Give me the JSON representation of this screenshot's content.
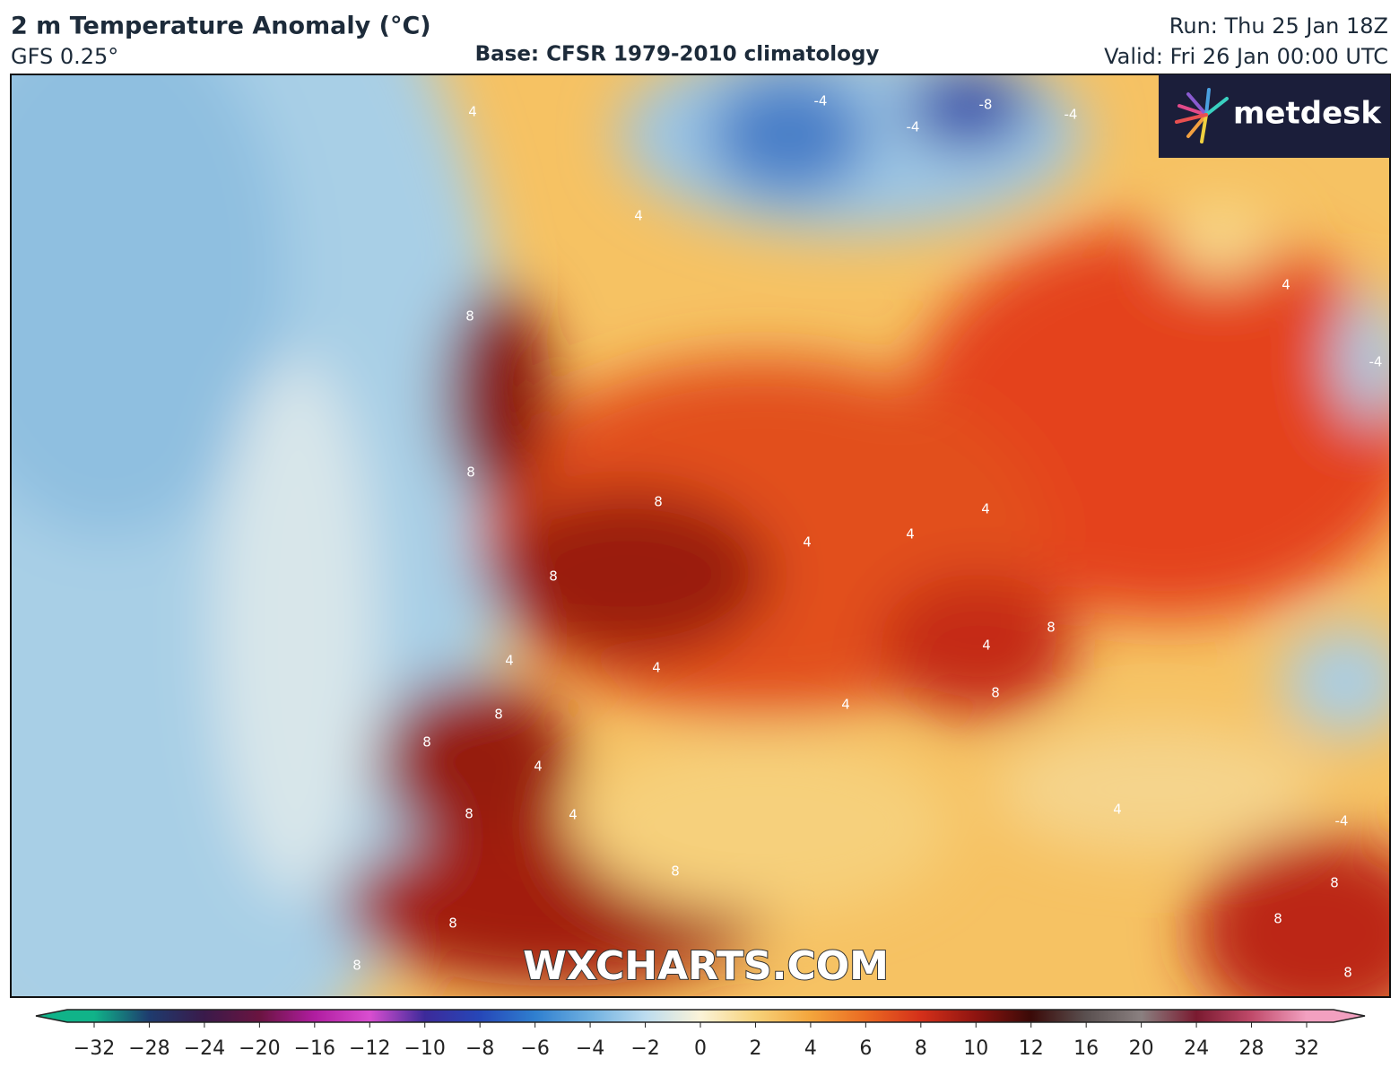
{
  "header": {
    "title": "2 m Temperature Anomaly (°C)",
    "model": "GFS 0.25°",
    "base": "Base: CFSR 1979-2010 climatology",
    "run": "Run: Thu 25 Jan 18Z",
    "valid": "Valid: Fri 26 Jan 00:00 UTC"
  },
  "map": {
    "logo": "metdesk",
    "watermark": "WXCHARTS.COM",
    "contour_labels": [
      8,
      8,
      8,
      8,
      4,
      4,
      8,
      8,
      4,
      8,
      4,
      8,
      8,
      8,
      8,
      4,
      8,
      4,
      4,
      4,
      4,
      4,
      -4,
      -8,
      -4,
      -4,
      4,
      4,
      4,
      8,
      8,
      8,
      -4,
      -4
    ]
  },
  "colorbar": {
    "ticks": [
      {
        "value": -32,
        "label": "−32"
      },
      {
        "value": -28,
        "label": "−28"
      },
      {
        "value": -24,
        "label": "−24"
      },
      {
        "value": -20,
        "label": "−20"
      },
      {
        "value": -16,
        "label": "−16"
      },
      {
        "value": -12,
        "label": "−12"
      },
      {
        "value": -10,
        "label": "−10"
      },
      {
        "value": -8,
        "label": "−8"
      },
      {
        "value": -6,
        "label": "−6"
      },
      {
        "value": -4,
        "label": "−4"
      },
      {
        "value": -2,
        "label": "−2"
      },
      0,
      2,
      4,
      6,
      8,
      10,
      12,
      16,
      20,
      24,
      28,
      32
    ],
    "colors": [
      "#10b389",
      "#1e3b6e",
      "#3a1a4a",
      "#6a1440",
      "#b01da0",
      "#d94ed0",
      "#3c2a9a",
      "#2647b8",
      "#2f7fcf",
      "#6fb0e0",
      "#bcdcef",
      "#fbf3d8",
      "#f7d27a",
      "#f3a53c",
      "#ea6a22",
      "#d4301a",
      "#8e1410",
      "#3a0a08",
      "#5a5050",
      "#8a8080",
      "#7a1a30",
      "#c04a6a",
      "#f2a0c0"
    ]
  }
}
